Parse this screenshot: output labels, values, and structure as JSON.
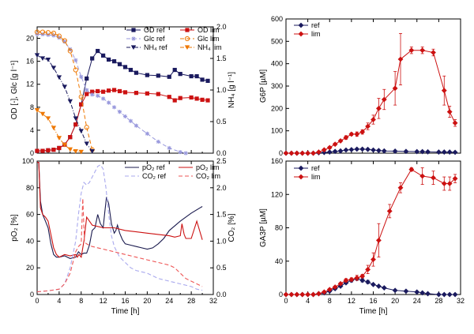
{
  "chart_data": [
    {
      "id": "panelA",
      "type": "line",
      "xlabel": "",
      "ylabel": "OD [-], Glc [g l⁻¹]",
      "y2label": "NH₄ [g l⁻¹]",
      "xlim": [
        0,
        32
      ],
      "ylim": [
        0,
        22
      ],
      "y2lim": [
        0,
        2.0
      ],
      "xticks": [],
      "yticks": [
        0,
        4,
        8,
        12,
        16,
        20
      ],
      "y2ticks": [
        0.0,
        0.5,
        1.0,
        1.5,
        2.0
      ],
      "legend": [
        "OD ref",
        "OD lim",
        "Glc ref",
        "Glc lim",
        "NH₄ ref",
        "NH₄ lim"
      ],
      "series": [
        {
          "name": "OD ref",
          "axis": "y",
          "color": "#1a1a5e",
          "style": "solid",
          "marker": "square",
          "x": [
            0,
            1,
            2,
            3,
            4,
            5,
            6,
            7,
            8,
            9,
            10,
            11,
            12,
            13,
            14,
            15,
            16,
            17,
            18,
            20,
            22,
            24,
            25,
            26,
            28,
            29,
            30,
            31
          ],
          "y": [
            0.4,
            0.4,
            0.5,
            0.6,
            0.9,
            1.5,
            2.8,
            5.0,
            8.5,
            13.0,
            16.5,
            17.8,
            17.0,
            16.3,
            16.0,
            15.5,
            15.0,
            14.5,
            14.0,
            13.6,
            13.5,
            13.3,
            14.5,
            13.8,
            13.4,
            13.4,
            12.8,
            12.6
          ]
        },
        {
          "name": "OD lim",
          "axis": "y",
          "color": "#cc1111",
          "style": "solid",
          "marker": "square",
          "x": [
            0,
            1,
            2,
            3,
            4,
            5,
            6,
            7,
            8,
            9,
            10,
            11,
            12,
            13,
            14,
            15,
            16,
            18,
            20,
            22,
            24,
            25,
            26,
            28,
            29,
            30,
            31
          ],
          "y": [
            0.4,
            0.4,
            0.5,
            0.6,
            0.9,
            1.5,
            2.8,
            5.0,
            8.5,
            10.3,
            10.7,
            10.8,
            10.7,
            10.9,
            11.0,
            10.8,
            10.6,
            10.5,
            10.4,
            10.3,
            9.8,
            9.2,
            9.6,
            9.7,
            9.5,
            9.3,
            9.2
          ]
        },
        {
          "name": "Glc ref",
          "axis": "y",
          "color": "#9999dd",
          "style": "dashed",
          "marker": "star",
          "x": [
            0,
            1,
            2,
            3,
            4,
            5,
            6,
            7,
            8,
            9,
            10,
            11,
            12,
            13,
            14,
            15,
            16,
            17,
            18,
            20,
            22,
            24,
            26,
            27
          ],
          "y": [
            20.7,
            20.7,
            20.6,
            20.5,
            20.1,
            19.4,
            18.1,
            16.2,
            13.3,
            11.0,
            10.2,
            10.0,
            9.5,
            8.8,
            8.0,
            7.2,
            6.4,
            5.6,
            4.8,
            3.4,
            2.0,
            0.9,
            0.2,
            0.0
          ]
        },
        {
          "name": "Glc lim",
          "axis": "y",
          "color": "#ee7700",
          "style": "dashed",
          "marker": "circle",
          "x": [
            0,
            1,
            2,
            3,
            4,
            5,
            6,
            7,
            8,
            9,
            10
          ],
          "y": [
            21.1,
            21.1,
            21.0,
            20.9,
            20.4,
            19.6,
            17.8,
            14.5,
            9.8,
            4.5,
            0.6
          ]
        },
        {
          "name": "NH₄ ref",
          "axis": "y2",
          "color": "#1a1a5e",
          "style": "dashdot",
          "marker": "tri-down",
          "x": [
            0,
            1,
            2,
            3,
            4,
            5,
            6,
            7,
            8,
            9,
            10
          ],
          "y": [
            1.55,
            1.5,
            1.48,
            1.35,
            1.2,
            1.05,
            0.82,
            0.55,
            0.35,
            0.15,
            0.03
          ]
        },
        {
          "name": "NH₄ lim",
          "axis": "y2",
          "color": "#ee7700",
          "style": "dashdot",
          "marker": "tri-down",
          "x": [
            0,
            1,
            2,
            3,
            4,
            5,
            6,
            7,
            8
          ],
          "y": [
            0.68,
            0.62,
            0.55,
            0.4,
            0.24,
            0.13,
            0.06,
            0.03,
            0.02
          ]
        }
      ]
    },
    {
      "id": "panelB",
      "type": "line",
      "xlabel": "Time [h]",
      "ylabel": "pO₂ [%]",
      "y2label": "CO₂ [%]",
      "xlim": [
        0,
        32
      ],
      "ylim": [
        0,
        100
      ],
      "y2lim": [
        0,
        2.5
      ],
      "xticks": [
        0,
        4,
        8,
        12,
        16,
        20,
        24,
        28,
        32
      ],
      "yticks": [
        0,
        20,
        40,
        60,
        80,
        100
      ],
      "y2ticks": [
        0.0,
        0.5,
        1.0,
        1.5,
        2.0,
        2.5
      ],
      "legend": [
        "pO₂ ref",
        "pO₂ lim",
        "CO₂ ref",
        "CO₂ lim"
      ],
      "series": [
        {
          "name": "pO₂ ref",
          "axis": "y",
          "color": "#1a1a4e",
          "style": "solid",
          "x": [
            0,
            0.3,
            0.6,
            1,
            1.5,
            2,
            2.5,
            3,
            3.5,
            4,
            5,
            6,
            7,
            7.5,
            8,
            8.5,
            9,
            9.5,
            10,
            10.5,
            11,
            11.5,
            12,
            12.3,
            12.6,
            13,
            13.5,
            14,
            14.3,
            14.6,
            15,
            15.5,
            16,
            17,
            18,
            19,
            20,
            21,
            22,
            23,
            24,
            26,
            28,
            30
          ],
          "y": [
            99,
            99,
            70,
            60,
            55,
            50,
            38,
            30,
            28,
            28,
            29,
            27,
            28,
            32,
            30,
            31,
            31,
            37,
            48,
            50,
            60,
            53,
            50,
            62,
            73,
            68,
            53,
            46,
            48,
            52,
            46,
            41,
            38,
            37,
            36,
            35,
            34,
            35,
            38,
            42,
            48,
            55,
            61,
            66
          ]
        },
        {
          "name": "pO₂ lim",
          "axis": "y",
          "color": "#cc1111",
          "style": "solid",
          "x": [
            0,
            0.3,
            0.6,
            1,
            1.5,
            2,
            2.5,
            3,
            3.5,
            4,
            5,
            6,
            7,
            7.3,
            7.6,
            8,
            8.5,
            9,
            9.5,
            10,
            12,
            14,
            16,
            18,
            20,
            22,
            24,
            25,
            26,
            26.3,
            26.7,
            27,
            28,
            29,
            30
          ],
          "y": [
            99,
            99,
            65,
            60,
            58,
            55,
            45,
            35,
            30,
            28,
            30,
            29,
            30,
            28,
            30,
            28,
            40,
            58,
            55,
            52,
            50,
            50,
            48,
            47,
            46,
            45,
            44,
            43,
            44,
            53,
            45,
            42,
            42,
            55,
            41
          ]
        },
        {
          "name": "CO₂ ref",
          "axis": "y2",
          "color": "#aaaaee",
          "style": "dashed",
          "x": [
            0,
            2,
            4,
            5,
            6,
            7,
            7.5,
            8,
            8.5,
            9,
            9.5,
            10,
            10.5,
            11,
            11.5,
            12,
            12.5,
            13,
            13.5,
            14,
            15,
            16,
            17,
            18,
            20,
            22,
            24,
            26,
            28,
            29,
            30
          ],
          "y": [
            0.05,
            0.07,
            0.1,
            0.2,
            0.5,
            1.0,
            1.5,
            1.9,
            2.1,
            2.05,
            2.1,
            2.2,
            2.3,
            2.4,
            2.43,
            2.35,
            2.0,
            1.5,
            1.1,
            0.9,
            0.7,
            0.6,
            0.5,
            0.45,
            0.4,
            0.3,
            0.25,
            0.2,
            0.15,
            0.1,
            0.08
          ]
        },
        {
          "name": "CO₂ lim",
          "axis": "y2",
          "color": "#ee5555",
          "style": "dashed",
          "x": [
            0,
            2,
            4,
            5,
            6,
            6.5,
            7,
            7.5,
            8,
            8.3,
            8.6,
            9,
            9.5,
            10,
            12,
            14,
            16,
            18,
            20,
            22,
            24,
            25,
            26,
            27,
            28,
            29,
            30
          ],
          "y": [
            0.05,
            0.07,
            0.1,
            0.2,
            0.4,
            0.6,
            0.8,
            0.9,
            0.95,
            1.8,
            0.98,
            0.95,
            0.92,
            0.9,
            0.85,
            0.8,
            0.75,
            0.7,
            0.65,
            0.6,
            0.55,
            0.5,
            0.4,
            0.3,
            0.25,
            0.2,
            0.15
          ]
        }
      ]
    },
    {
      "id": "panelC",
      "type": "line",
      "xlabel": "",
      "ylabel": "G6P [µM]",
      "xlim": [
        0,
        32
      ],
      "ylim": [
        0,
        600
      ],
      "xticks": [],
      "yticks": [
        0,
        100,
        200,
        300,
        400,
        500,
        600
      ],
      "legend": [
        "ref",
        "lim"
      ],
      "series": [
        {
          "name": "ref",
          "color": "#1a1a5e",
          "marker": "diamond",
          "x": [
            0,
            1,
            2,
            3,
            4,
            5,
            6,
            7,
            8,
            9,
            10,
            11,
            12,
            13,
            14,
            15,
            16,
            17,
            18,
            20,
            22,
            24,
            25,
            26,
            28,
            29,
            30,
            31
          ],
          "y": [
            0,
            0,
            0,
            0,
            0,
            0,
            2,
            3,
            5,
            8,
            10,
            14,
            16,
            18,
            18,
            17,
            14,
            12,
            10,
            9,
            8,
            7,
            7,
            6,
            5,
            5,
            5,
            4
          ],
          "err": [
            0,
            0,
            0,
            0,
            0,
            0,
            0,
            0,
            0,
            0,
            0,
            0,
            0,
            0,
            0,
            0,
            0,
            0,
            0,
            0,
            0,
            0,
            0,
            0,
            0,
            0,
            0,
            0
          ]
        },
        {
          "name": "lim",
          "color": "#cc1111",
          "marker": "diamond",
          "x": [
            0,
            1,
            2,
            3,
            4,
            5,
            6,
            7,
            8,
            9,
            10,
            11,
            12,
            13,
            14,
            15,
            16,
            17,
            18,
            20,
            21,
            23,
            25,
            27,
            29,
            30,
            31
          ],
          "y": [
            0,
            0,
            0,
            0,
            0,
            0,
            5,
            15,
            25,
            40,
            55,
            70,
            85,
            85,
            95,
            120,
            150,
            200,
            240,
            290,
            420,
            460,
            460,
            450,
            280,
            185,
            135
          ],
          "err": [
            0,
            0,
            0,
            0,
            0,
            0,
            0,
            3,
            5,
            5,
            5,
            8,
            6,
            10,
            10,
            15,
            20,
            45,
            45,
            75,
            115,
            15,
            15,
            15,
            65,
            25,
            15
          ]
        }
      ]
    },
    {
      "id": "panelD",
      "type": "line",
      "xlabel": "Time [h]",
      "ylabel": "GA3P [µM]",
      "xlim": [
        0,
        32
      ],
      "ylim": [
        0,
        160
      ],
      "xticks": [
        0,
        4,
        8,
        12,
        16,
        20,
        24,
        28,
        32
      ],
      "yticks": [
        0,
        40,
        80,
        120,
        160
      ],
      "legend": [
        "ref",
        "lim"
      ],
      "series": [
        {
          "name": "ref",
          "color": "#1a1a5e",
          "marker": "diamond",
          "x": [
            0,
            1,
            2,
            3,
            4,
            5,
            6,
            7,
            8,
            9,
            10,
            11,
            12,
            13,
            14,
            15,
            16,
            17,
            18,
            20,
            22,
            24,
            25,
            26,
            28,
            29,
            30,
            31
          ],
          "y": [
            0,
            0,
            0,
            0,
            0,
            0,
            1,
            2,
            4,
            7,
            10,
            14,
            17,
            19,
            17,
            15,
            12,
            10,
            8,
            5,
            4,
            3,
            2,
            1,
            0,
            0,
            0,
            0
          ],
          "err": [
            0,
            0,
            0,
            0,
            0,
            0,
            0,
            0,
            0,
            0,
            1,
            1,
            2,
            2,
            2,
            2,
            1,
            1,
            1,
            0,
            0,
            0,
            0,
            0,
            0,
            0,
            0,
            0
          ]
        },
        {
          "name": "lim",
          "color": "#cc1111",
          "marker": "diamond",
          "x": [
            0,
            1,
            2,
            3,
            4,
            5,
            6,
            7,
            8,
            9,
            10,
            11,
            12,
            13,
            14,
            15,
            16,
            17,
            19,
            21,
            23,
            25,
            27,
            29,
            30,
            31
          ],
          "y": [
            0,
            0,
            0,
            0,
            0,
            0,
            1,
            3,
            6,
            9,
            13,
            17,
            18,
            20,
            22,
            30,
            42,
            65,
            100,
            128,
            150,
            142,
            140,
            133,
            133,
            139
          ],
          "err": [
            0,
            0,
            0,
            0,
            0,
            0,
            0,
            0,
            1,
            1,
            1,
            2,
            2,
            3,
            2,
            5,
            8,
            20,
            8,
            6,
            2,
            10,
            8,
            8,
            8,
            5
          ]
        }
      ]
    }
  ]
}
